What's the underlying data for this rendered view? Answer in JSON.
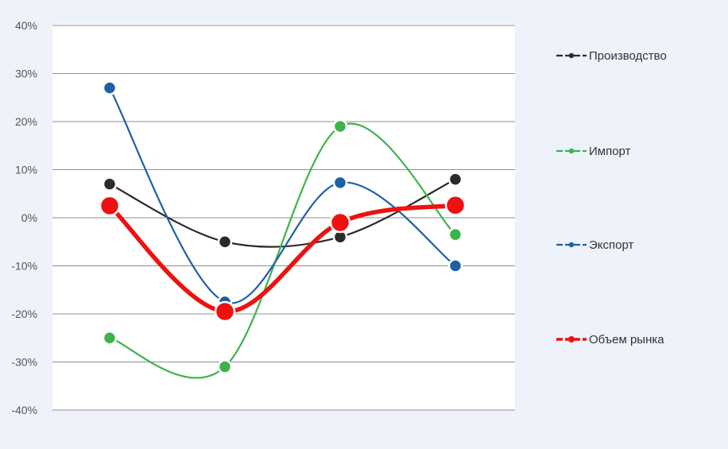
{
  "chart_data": {
    "type": "line",
    "title": "",
    "xlabel": "",
    "ylabel": "",
    "ylim": [
      -40,
      40
    ],
    "yticks": [
      40,
      30,
      20,
      10,
      0,
      -10,
      -20,
      -30,
      -40
    ],
    "ytick_labels": [
      "40%",
      "30%",
      "20%",
      "10%",
      "0%",
      "-10%",
      "-20%",
      "-30%",
      "-40%"
    ],
    "x": [
      1,
      2,
      3,
      4
    ],
    "grid": true,
    "legend_position": "right",
    "series": [
      {
        "name": "Производство",
        "color": "#2b2b2b",
        "values": [
          7,
          -5,
          -4,
          8
        ],
        "emphasis": false
      },
      {
        "name": "Импорт",
        "color": "#3cb44b",
        "values": [
          -25,
          -31,
          19,
          -3.5
        ],
        "emphasis": false
      },
      {
        "name": "Экспорт",
        "color": "#1f5fa6",
        "values": [
          27,
          -17.5,
          7.3,
          -10
        ],
        "emphasis": false
      },
      {
        "name": "Объем рынка",
        "color": "#ee1111",
        "values": [
          2.5,
          -19.5,
          -1,
          2.6
        ],
        "emphasis": true
      }
    ]
  }
}
